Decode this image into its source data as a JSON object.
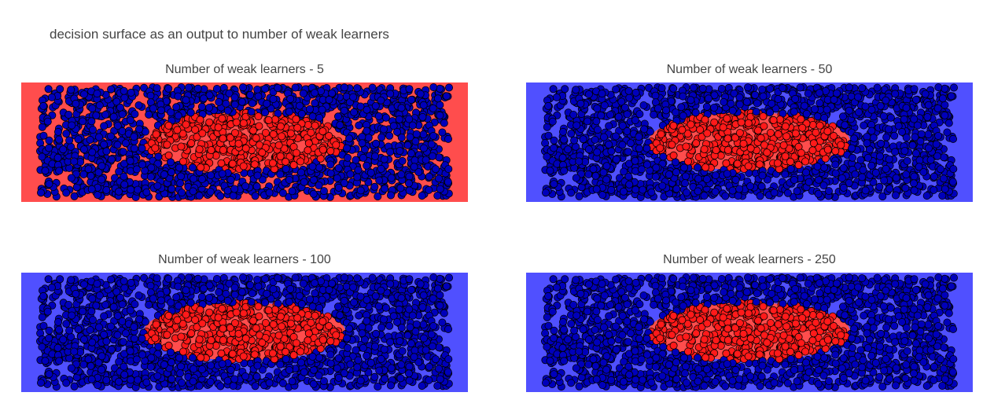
{
  "title": "decision surface as an output to number of weak learners",
  "colors": {
    "background_red": "#ff4d4d",
    "background_blue": "#5050ff",
    "class_outer_point": "#0000bb",
    "class_inner_point": "#ff1a1a",
    "point_outline": "#000000"
  },
  "chart_data": [
    {
      "type": "scatter",
      "title": "Number of weak learners - 5",
      "n_estimators": 5,
      "background": "background_red",
      "inner_region": "ellipse",
      "grid": false,
      "axes_visible": false
    },
    {
      "type": "scatter",
      "title": "Number of weak learners - 50",
      "n_estimators": 50,
      "background": "background_blue",
      "inner_region": "ellipse",
      "grid": false,
      "axes_visible": false
    },
    {
      "type": "scatter",
      "title": "Number of weak learners - 100",
      "n_estimators": 100,
      "background": "background_blue",
      "inner_region": "ellipse",
      "grid": false,
      "axes_visible": false
    },
    {
      "type": "scatter",
      "title": "Number of weak learners - 250",
      "n_estimators": 250,
      "background": "background_blue",
      "inner_region": "ellipse",
      "grid": false,
      "axes_visible": false
    }
  ]
}
